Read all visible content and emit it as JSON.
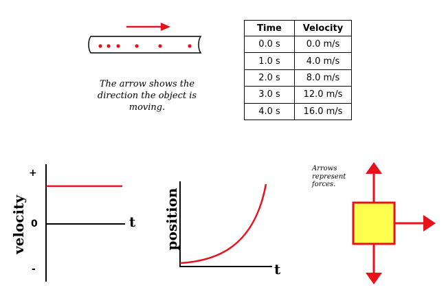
{
  "motion": {
    "caption": "The arrow shows the direction the object is moving.",
    "arrow_color": "#e8101a",
    "dot_color": "#e8101a"
  },
  "table": {
    "headers": [
      "Time",
      "Velocity"
    ],
    "rows": [
      [
        "0.0 s",
        "0.0 m/s"
      ],
      [
        "1.0 s",
        "4.0 m/s"
      ],
      [
        "2.0 s",
        "8.0 m/s"
      ],
      [
        "3.0 s",
        "12.0 m/s"
      ],
      [
        "4.0 s",
        "16.0 m/s"
      ]
    ]
  },
  "velocity_graph": {
    "ylabel": "velocity",
    "xlabel": "t",
    "tick_plus": "+",
    "tick_zero": "0",
    "tick_minus": "-",
    "line_color": "#e8101a"
  },
  "position_graph": {
    "ylabel": "position",
    "xlabel": "t",
    "curve_color": "#e8101a"
  },
  "forces": {
    "note": "Arrows represent forces.",
    "box_fill": "#ffff4d",
    "box_stroke": "#e8101a",
    "arrow_color": "#e8101a"
  }
}
